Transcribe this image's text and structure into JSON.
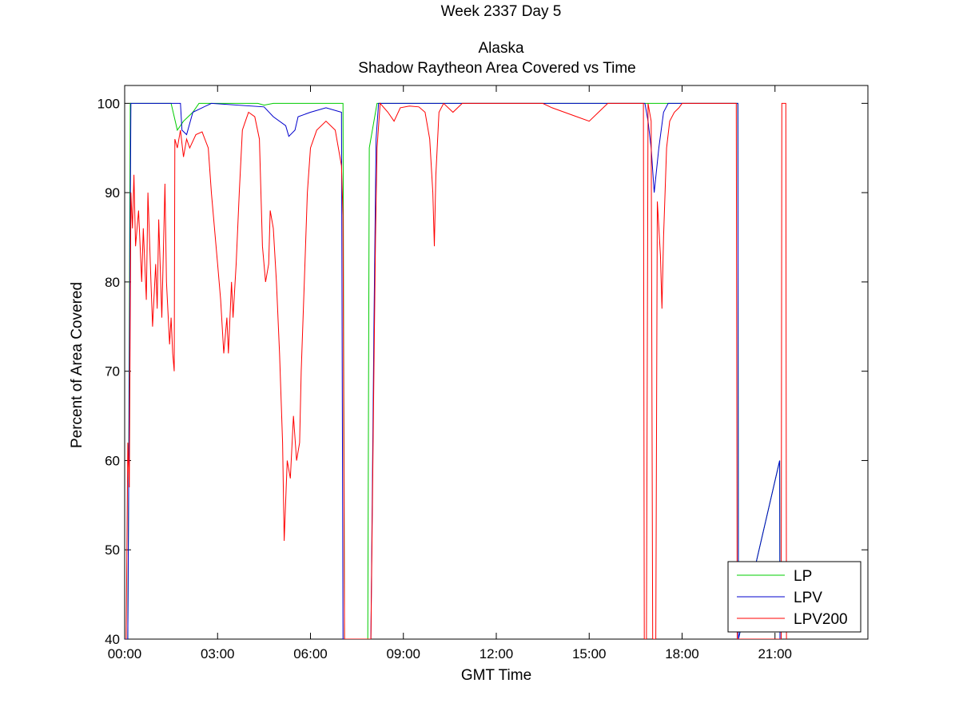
{
  "chart_data": {
    "type": "line",
    "title_lines": [
      "Week 2337 Day 5",
      "",
      "Alaska",
      "Shadow Raytheon Area Covered vs Time"
    ],
    "xlabel": "GMT Time",
    "ylabel": "Percent of Area Covered",
    "xlim": [
      0,
      24
    ],
    "ylim": [
      40,
      102
    ],
    "x_ticks": [
      0,
      3,
      6,
      9,
      12,
      15,
      18,
      21
    ],
    "x_tick_labels": [
      "00:00",
      "03:00",
      "06:00",
      "09:00",
      "12:00",
      "15:00",
      "18:00",
      "21:00"
    ],
    "y_ticks": [
      40,
      50,
      60,
      70,
      80,
      90,
      100
    ],
    "y_tick_labels": [
      "40",
      "50",
      "60",
      "70",
      "80",
      "90",
      "100"
    ],
    "grid": false,
    "legend_position": "bottom-right",
    "series": [
      {
        "name": "LP",
        "color": "#00cc00",
        "points": [
          [
            0.0,
            40
          ],
          [
            0.1,
            40
          ],
          [
            0.12,
            52
          ],
          [
            0.18,
            100
          ],
          [
            1.5,
            100
          ],
          [
            1.7,
            97
          ],
          [
            1.9,
            98
          ],
          [
            2.2,
            99
          ],
          [
            2.4,
            100
          ],
          [
            4.3,
            100
          ],
          [
            4.5,
            99.8
          ],
          [
            4.8,
            100
          ],
          [
            7.05,
            100
          ],
          [
            7.1,
            40
          ],
          [
            7.85,
            40
          ],
          [
            7.9,
            95
          ],
          [
            8.05,
            98
          ],
          [
            8.15,
            100
          ],
          [
            19.8,
            100
          ],
          [
            19.82,
            40
          ],
          [
            21.15,
            60
          ],
          [
            21.16,
            40
          ]
        ]
      },
      {
        "name": "LPV",
        "color": "#0000cc",
        "points": [
          [
            0.0,
            40
          ],
          [
            0.1,
            40
          ],
          [
            0.12,
            52
          ],
          [
            0.2,
            100
          ],
          [
            1.8,
            100
          ],
          [
            1.85,
            97
          ],
          [
            2.0,
            96.5
          ],
          [
            2.2,
            99
          ],
          [
            2.5,
            99.5
          ],
          [
            2.8,
            100
          ],
          [
            4.5,
            99.6
          ],
          [
            4.8,
            98.5
          ],
          [
            5.2,
            97.5
          ],
          [
            5.3,
            96.3
          ],
          [
            5.5,
            97
          ],
          [
            5.6,
            98.5
          ],
          [
            6.0,
            99
          ],
          [
            6.5,
            99.5
          ],
          [
            7.0,
            99
          ],
          [
            7.05,
            40
          ],
          [
            7.95,
            40
          ],
          [
            8.05,
            75
          ],
          [
            8.12,
            96
          ],
          [
            8.2,
            100
          ],
          [
            16.8,
            100
          ],
          [
            16.9,
            98
          ],
          [
            17.0,
            95
          ],
          [
            17.1,
            90
          ],
          [
            17.25,
            95
          ],
          [
            17.4,
            99
          ],
          [
            17.55,
            100
          ],
          [
            19.8,
            100
          ],
          [
            19.82,
            40
          ],
          [
            21.15,
            60
          ],
          [
            21.16,
            40
          ]
        ]
      },
      {
        "name": "LPV200",
        "color": "#ff0000",
        "points": [
          [
            0.05,
            40
          ],
          [
            0.1,
            62
          ],
          [
            0.15,
            57
          ],
          [
            0.2,
            90
          ],
          [
            0.25,
            86
          ],
          [
            0.3,
            92
          ],
          [
            0.35,
            84
          ],
          [
            0.45,
            88
          ],
          [
            0.55,
            80
          ],
          [
            0.6,
            86
          ],
          [
            0.7,
            78
          ],
          [
            0.75,
            90
          ],
          [
            0.85,
            80
          ],
          [
            0.9,
            75
          ],
          [
            1.0,
            82
          ],
          [
            1.05,
            77
          ],
          [
            1.1,
            87
          ],
          [
            1.2,
            76
          ],
          [
            1.3,
            91
          ],
          [
            1.35,
            80
          ],
          [
            1.45,
            73
          ],
          [
            1.5,
            76
          ],
          [
            1.55,
            72
          ],
          [
            1.6,
            70
          ],
          [
            1.62,
            96
          ],
          [
            1.7,
            95
          ],
          [
            1.8,
            97
          ],
          [
            1.9,
            94
          ],
          [
            2.0,
            96
          ],
          [
            2.1,
            95
          ],
          [
            2.3,
            96.5
          ],
          [
            2.5,
            96.8
          ],
          [
            2.7,
            95
          ],
          [
            2.8,
            90
          ],
          [
            3.0,
            82
          ],
          [
            3.1,
            78
          ],
          [
            3.2,
            72
          ],
          [
            3.3,
            76
          ],
          [
            3.35,
            72
          ],
          [
            3.45,
            80
          ],
          [
            3.5,
            76
          ],
          [
            3.6,
            82
          ],
          [
            3.7,
            90
          ],
          [
            3.8,
            97
          ],
          [
            3.9,
            98
          ],
          [
            4.0,
            99
          ],
          [
            4.2,
            98.5
          ],
          [
            4.35,
            96
          ],
          [
            4.4,
            90
          ],
          [
            4.45,
            84
          ],
          [
            4.55,
            80
          ],
          [
            4.65,
            82
          ],
          [
            4.7,
            88
          ],
          [
            4.8,
            86
          ],
          [
            4.9,
            80
          ],
          [
            5.0,
            72
          ],
          [
            5.1,
            62
          ],
          [
            5.15,
            51
          ],
          [
            5.25,
            60
          ],
          [
            5.35,
            58
          ],
          [
            5.45,
            65
          ],
          [
            5.55,
            60
          ],
          [
            5.65,
            62
          ],
          [
            5.7,
            70
          ],
          [
            5.8,
            80
          ],
          [
            5.9,
            90
          ],
          [
            6.0,
            95
          ],
          [
            6.2,
            97
          ],
          [
            6.5,
            98
          ],
          [
            6.8,
            97
          ],
          [
            7.0,
            93
          ],
          [
            7.05,
            87.5
          ],
          [
            7.1,
            40
          ],
          [
            7.95,
            40
          ],
          [
            8.0,
            55
          ],
          [
            8.05,
            70
          ],
          [
            8.1,
            85
          ],
          [
            8.15,
            95
          ],
          [
            8.25,
            100
          ],
          [
            8.5,
            99
          ],
          [
            8.7,
            98
          ],
          [
            8.9,
            99.5
          ],
          [
            9.2,
            99.7
          ],
          [
            9.5,
            99.6
          ],
          [
            9.7,
            99
          ],
          [
            9.85,
            96
          ],
          [
            9.95,
            90
          ],
          [
            10.0,
            84
          ],
          [
            10.05,
            92
          ],
          [
            10.15,
            99
          ],
          [
            10.3,
            100
          ],
          [
            10.6,
            99
          ],
          [
            10.9,
            100
          ],
          [
            13.5,
            100
          ],
          [
            13.8,
            99.5
          ],
          [
            14.2,
            99
          ],
          [
            14.6,
            98.5
          ],
          [
            15.0,
            98
          ],
          [
            15.3,
            99
          ],
          [
            15.6,
            100
          ],
          [
            16.75,
            100
          ],
          [
            16.78,
            40
          ],
          [
            16.85,
            40
          ],
          [
            16.9,
            100
          ],
          [
            17.0,
            98
          ],
          [
            17.05,
            40
          ],
          [
            17.15,
            40
          ],
          [
            17.2,
            89
          ],
          [
            17.3,
            83
          ],
          [
            17.35,
            77
          ],
          [
            17.4,
            85
          ],
          [
            17.5,
            95
          ],
          [
            17.6,
            98
          ],
          [
            17.75,
            99
          ],
          [
            17.9,
            99.5
          ],
          [
            18.0,
            100
          ],
          [
            19.75,
            100
          ],
          [
            19.78,
            40
          ],
          [
            21.2,
            40
          ],
          [
            21.22,
            100
          ],
          [
            21.35,
            100
          ],
          [
            21.37,
            40
          ]
        ]
      }
    ]
  }
}
